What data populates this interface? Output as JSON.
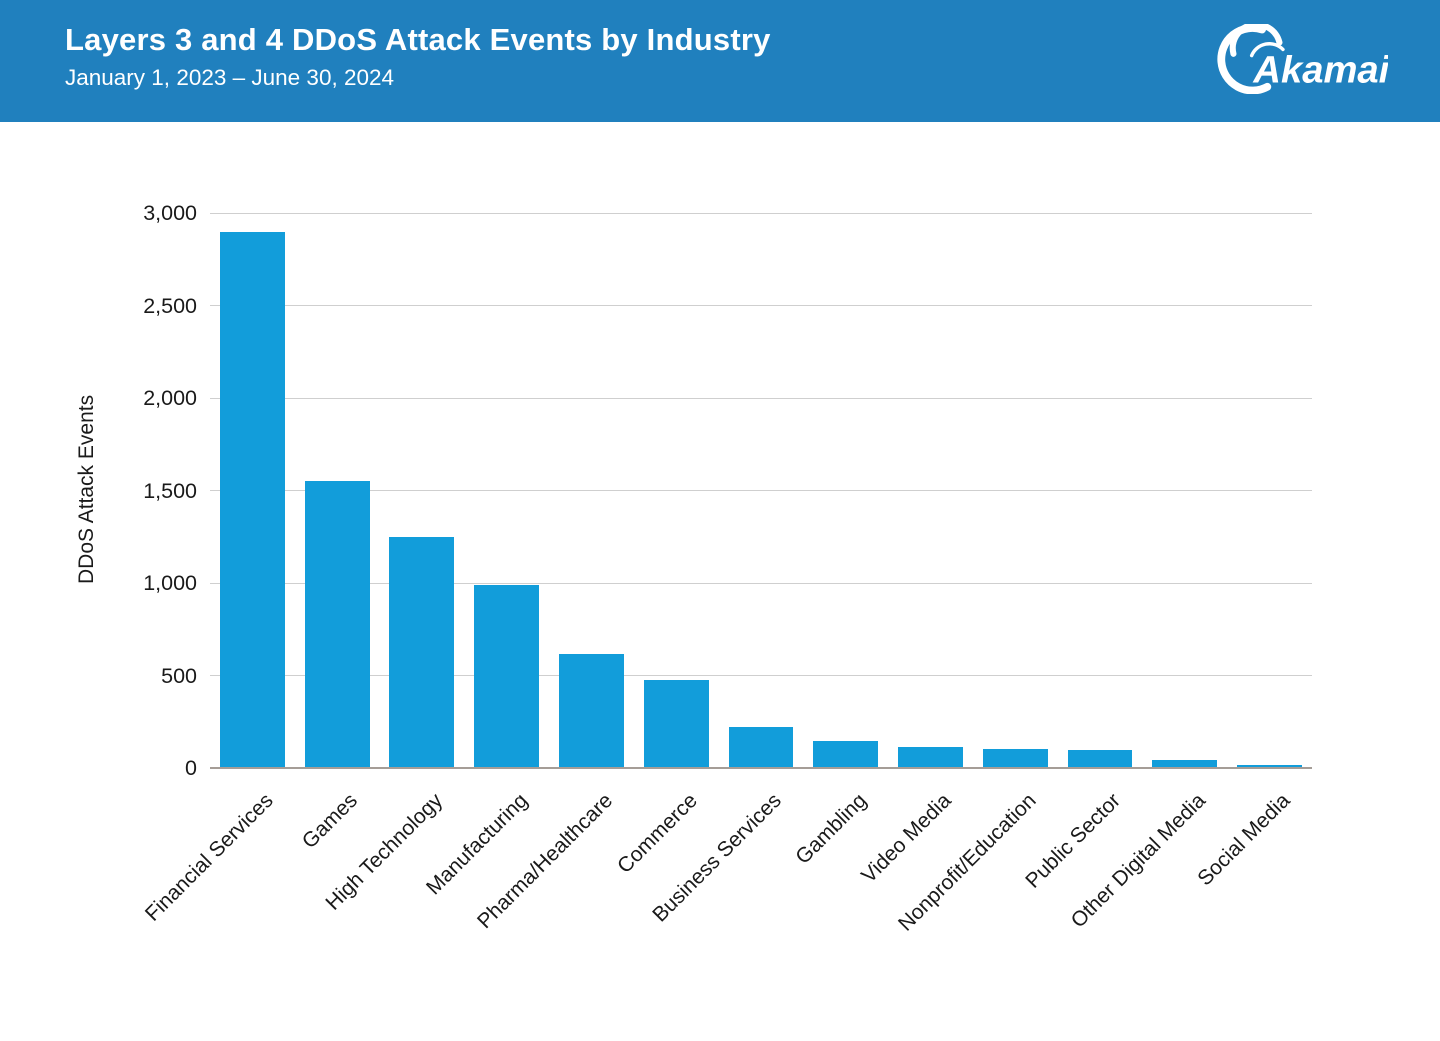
{
  "header": {
    "title": "Layers 3 and 4 DDoS Attack Events by Industry",
    "subtitle": "January 1, 2023 – June 30, 2024",
    "logo_text": "Akamai",
    "banner_color": "#2080BE"
  },
  "chart_data": {
    "type": "bar",
    "title": "Layers 3 and 4 DDoS Attack Events by Industry",
    "subtitle": "January 1, 2023 – June 30, 2024",
    "categories": [
      "Financial Services",
      "Games",
      "High Technology",
      "Manufacturing",
      "Pharma/Healthcare",
      "Commerce",
      "Business Services",
      "Gambling",
      "Video Media",
      "Nonprofit/Education",
      "Public Sector",
      "Other Digital Media",
      "Social Media"
    ],
    "values": [
      2900,
      1550,
      1250,
      990,
      615,
      475,
      220,
      145,
      115,
      105,
      100,
      45,
      15
    ],
    "xlabel": "",
    "ylabel": "DDoS Attack Events",
    "ylim": [
      0,
      3000
    ],
    "ytick_values": [
      0,
      500,
      1000,
      1500,
      2000,
      2500,
      3000
    ],
    "ytick_labels": [
      "0",
      "500",
      "1,000",
      "1,500",
      "2,000",
      "2,500",
      "3,000"
    ],
    "bar_color": "#129DDA",
    "gridline_color": "#cfcfcf",
    "grid": "horizontal",
    "legend_position": "none"
  }
}
